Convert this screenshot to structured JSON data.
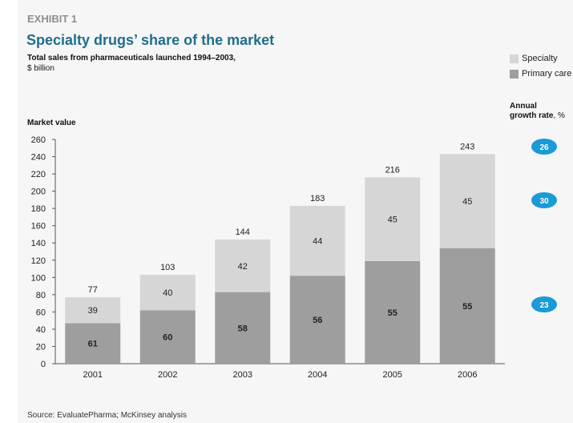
{
  "header": {
    "exhibit": "EXHIBIT 1",
    "title": "Specialty drugs’ share of the market",
    "subtitle": "Total sales from pharmaceuticals launched 1994–2003,",
    "unit": "$ billion"
  },
  "legend": [
    {
      "label": "Specialty",
      "color": "#d6d6d6"
    },
    {
      "label": "Primary care",
      "color": "#9e9e9e"
    }
  ],
  "growth": {
    "title_line1": "Annual",
    "title_bold": "growth rate",
    "title_suffix": ", %",
    "values": [
      "26",
      "30",
      "23"
    ],
    "color": "#1a9ad6"
  },
  "source": "Source: EvaluatePharma; McKinsey analysis",
  "chart_data": {
    "type": "bar",
    "stacked": true,
    "ylabel": "Market value",
    "ylim": [
      0,
      260
    ],
    "yticks": [
      0,
      20,
      40,
      60,
      80,
      100,
      120,
      140,
      160,
      180,
      200,
      220,
      240,
      260
    ],
    "categories": [
      "2001",
      "2002",
      "2003",
      "2004",
      "2005",
      "2006"
    ],
    "totals": [
      77,
      103,
      144,
      183,
      216,
      243
    ],
    "series": [
      {
        "name": "Primary care",
        "color": "#9e9e9e",
        "values": [
          47,
          62,
          83,
          102,
          119,
          134
        ],
        "labels": [
          "61",
          "60",
          "58",
          "56",
          "55",
          "55"
        ]
      },
      {
        "name": "Specialty",
        "color": "#d6d6d6",
        "values": [
          30,
          41,
          61,
          81,
          97,
          109
        ],
        "labels": [
          "39",
          "40",
          "42",
          "44",
          "45",
          "45"
        ]
      }
    ]
  }
}
